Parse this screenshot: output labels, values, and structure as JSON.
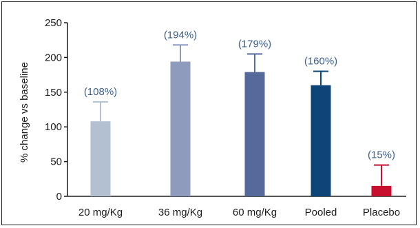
{
  "chart_data": {
    "type": "bar",
    "title": "",
    "xlabel": "",
    "ylabel": "% change vs baseline",
    "ylim": [
      0,
      250
    ],
    "yticks": [
      0,
      50,
      100,
      150,
      200,
      250
    ],
    "grid": false,
    "categories": [
      "20 mg/Kg",
      "36 mg/Kg",
      "60 mg/Kg",
      "Pooled",
      "Placebo"
    ],
    "values": [
      108,
      194,
      179,
      160,
      15
    ],
    "error_upper": [
      136,
      218,
      205,
      180,
      45
    ],
    "data_labels": [
      "(108%)",
      "(194%)",
      "(179%)",
      "(160%)",
      "(15%)"
    ],
    "colors": [
      "#b2c0d2",
      "#8e9bbd",
      "#556a9b",
      "#0e4579",
      "#c8102e"
    ],
    "label_color": "#3d5f8c"
  }
}
